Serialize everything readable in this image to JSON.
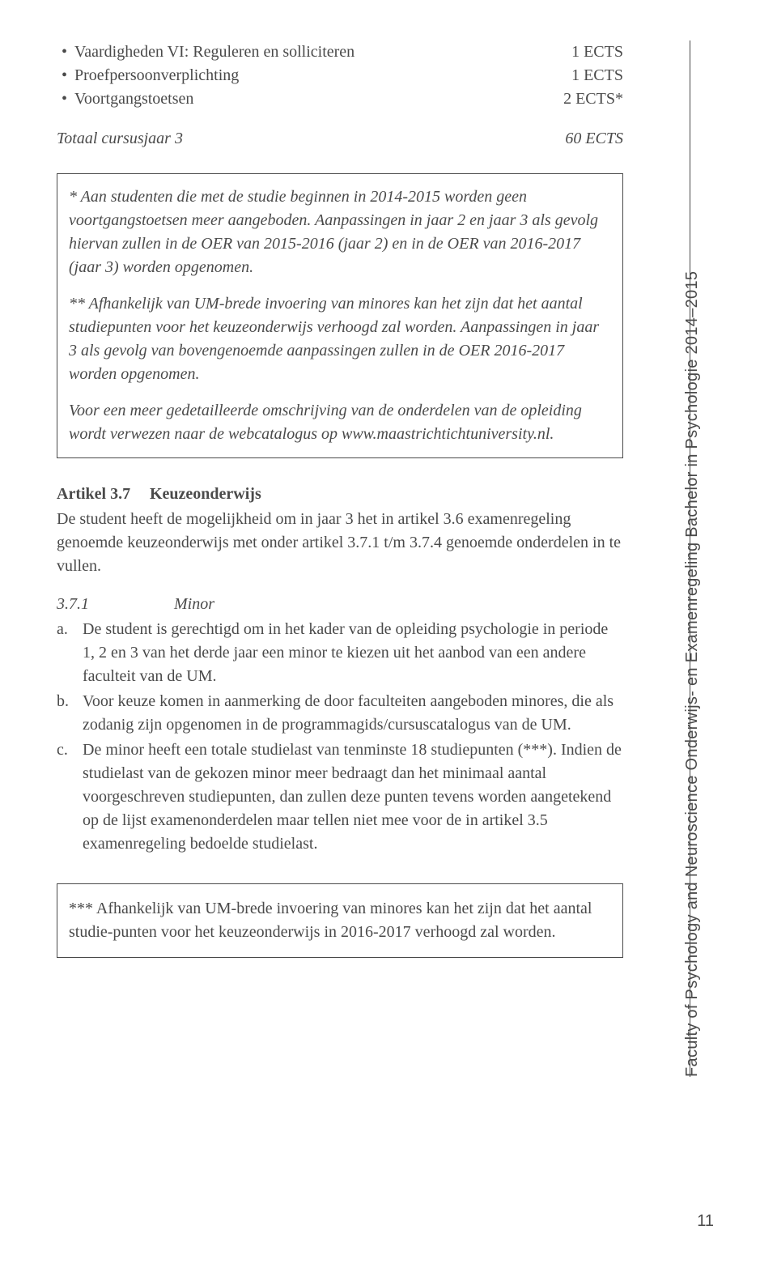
{
  "courses": [
    {
      "name": "Vaardigheden VI: Reguleren en solliciteren",
      "ects": "1 ECTS"
    },
    {
      "name": "Proefpersoonverplichting",
      "ects": "1 ECTS"
    },
    {
      "name": "Voortgangstoetsen",
      "ects": "2 ECTS*"
    }
  ],
  "total": {
    "label": "Totaal cursusjaar 3",
    "ects": "60 ECTS"
  },
  "box1": {
    "p1": "* Aan studenten die met de studie beginnen in 2014-2015 worden geen voortgangstoetsen meer aangeboden. Aanpassingen in jaar 2 en jaar 3 als gevolg hiervan zullen in de OER van 2015-2016 (jaar 2) en in de OER van 2016-2017 (jaar 3) worden opgenomen.",
    "p2": "** Afhankelijk van UM-brede invoering van minores kan het zijn dat het aantal studiepunten voor het keuzeonderwijs verhoogd zal worden. Aanpassingen in jaar 3 als gevolg van bovengenoemde aanpassingen zullen in de OER 2016-2017 worden opgenomen.",
    "p3": "Voor een meer gedetailleerde omschrijving van de onderdelen van de opleiding wordt verwezen naar de webcatalogus op www.maastrichtichtuniversity.nl."
  },
  "article37": {
    "num": "Artikel 3.7",
    "title": "Keuzeonderwijs",
    "body": "De student heeft de mogelijkheid om in jaar 3 het in artikel 3.6 examenregeling genoemde keuzeonderwijs met onder artikel 3.7.1 t/m 3.7.4 genoemde onderdelen in te vullen."
  },
  "sub371": {
    "num": "3.7.1",
    "title": "Minor",
    "items": [
      {
        "letter": "a.",
        "text": "De student is gerechtigd om in het kader van de opleiding psychologie in periode 1, 2 en 3 van het derde jaar een minor te kiezen uit het aanbod van een andere faculteit van de UM."
      },
      {
        "letter": "b.",
        "text": "Voor keuze komen in aanmerking de door faculteiten aangeboden minores, die als zodanig zijn opgenomen in de programmagids/cursuscatalogus van de UM."
      },
      {
        "letter": "c.",
        "text": "De minor heeft een totale studielast van tenminste 18 studiepunten (***). Indien de studielast van de gekozen minor meer bedraagt dan het minimaal aantal voorgeschreven studiepunten, dan zullen deze punten tevens worden aangetekend op de lijst examenonderdelen maar tellen niet mee voor de in artikel 3.5 examenregeling bedoelde studielast."
      }
    ]
  },
  "box2": {
    "text": "*** Afhankelijk van UM-brede invoering van minores kan het zijn dat het aantal studie-punten voor het keuzeonderwijs in 2016-2017 verhoogd zal worden."
  },
  "sidebar": "Faculty of Psychology and Neuroscience  Onderwijs- en Examenregeling Bachelor in Psychologie 2014–2015",
  "pagenum": "11"
}
